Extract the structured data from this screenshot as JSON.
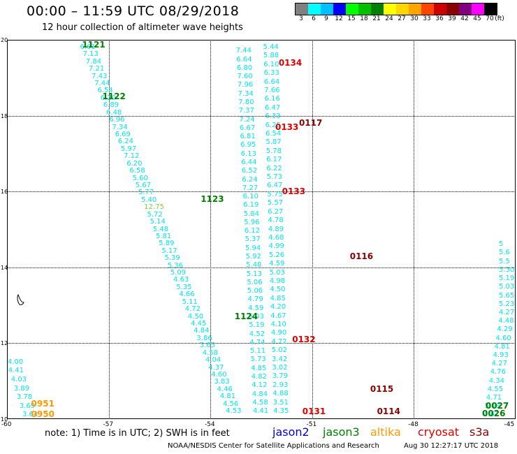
{
  "header": {
    "title": "00:00 – 11:59 UTC 08/29/2018",
    "subtitle": "12 hour collection of altimeter wave heights"
  },
  "colorbar": {
    "unit_label": "(ft)",
    "bins": [
      {
        "label": "3",
        "color": "#808080"
      },
      {
        "label": "6",
        "color": "#00ffff"
      },
      {
        "label": "9",
        "color": "#00bfff"
      },
      {
        "label": "12",
        "color": "#0000ff"
      },
      {
        "label": "15",
        "color": "#00ff00"
      },
      {
        "label": "18",
        "color": "#00c000"
      },
      {
        "label": "21",
        "color": "#008000"
      },
      {
        "label": "24",
        "color": "#ffff00"
      },
      {
        "label": "27",
        "color": "#ffd700"
      },
      {
        "label": "30",
        "color": "#ffa500"
      },
      {
        "label": "33",
        "color": "#ff4500"
      },
      {
        "label": "36",
        "color": "#cc0000"
      },
      {
        "label": "39",
        "color": "#8b0000"
      },
      {
        "label": "42",
        "color": "#800080"
      },
      {
        "label": "45",
        "color": "#ff00ff"
      },
      {
        "label": "70",
        "color": "#000000"
      }
    ]
  },
  "axes": {
    "lon_labels": [
      "-60",
      "-57",
      "-54",
      "-51",
      "-48",
      "-45"
    ],
    "lat_labels": [
      "20",
      "18",
      "16",
      "14",
      "12",
      "10"
    ],
    "lon_range": [
      -60,
      -45
    ],
    "lat_range": [
      10,
      20
    ],
    "grid": "dotted"
  },
  "colors": {
    "cyan": "#00e5ee",
    "green": "#008000",
    "lime": "#7fd13b",
    "red": "#dd0000",
    "maroon": "#8b0000",
    "orange": "#ff9900",
    "blue": "#0000dd"
  },
  "tracks": [
    {
      "color": "#00e5ee",
      "lon_start": -57.6,
      "lon_end": -53.3,
      "lat_start": 19.8,
      "lat_end": 10.2,
      "values": [
        "6.61",
        "7.13",
        "7.84",
        "7.21",
        "7.43",
        "7.44",
        "6.54",
        "6.20",
        "6.89",
        "6.48",
        "6.96",
        "7.34",
        "6.69",
        "6.24",
        "5.97",
        "7.12",
        "6.20",
        "6.58",
        "5.60",
        "5.67",
        "5.77",
        "5.40",
        "12.75",
        "5.72",
        "5.14",
        "5.48",
        "5.81",
        "5.89",
        "5.17",
        "5.39",
        "5.36",
        "5.09",
        "4.63",
        "5.35",
        "4.66",
        "5.11",
        "4.72",
        "4.50",
        "4.45",
        "4.84",
        "3.86",
        "3.65",
        "4.58",
        "4.04",
        "4.37",
        "4.60",
        "3.83",
        "4.46",
        "4.81",
        "4.56",
        "4.53"
      ]
    },
    {
      "color": "#00e5ee",
      "lon_start": -52.2,
      "lon_end": -51.9,
      "lat_start": 19.8,
      "lat_end": 10.2,
      "values": [
        "5.44",
        "5.88",
        "6.10",
        "6.33",
        "6.64",
        "7.66",
        "6.16",
        "6.47",
        "6.33",
        "6.25",
        "6.54",
        "5.87",
        "5.78",
        "6.17",
        "6.22",
        "5.73",
        "6.47",
        "5.75",
        "5.57",
        "6.27",
        "4.78",
        "4.89",
        "4.68",
        "4.99",
        "5.26",
        "4.59",
        "5.03",
        "4.98",
        "4.50",
        "4.85",
        "4.20",
        "4.67",
        "4.10",
        "4.90",
        "4.72",
        "5.02",
        "3.42",
        "3.02",
        "3.79",
        "2.93",
        "4.88",
        "3.51",
        "4.35"
      ]
    },
    {
      "color": "#00e5ee",
      "lon_start": -53.0,
      "lon_end": -52.5,
      "lat_start": 19.7,
      "lat_end": 10.2,
      "values": [
        "7.44",
        "6.64",
        "6.80",
        "7.60",
        "7.96",
        "7.34",
        "7.80",
        "7.37",
        "7.24",
        "6.67",
        "6.81",
        "6.95",
        "6.13",
        "6.44",
        "6.52",
        "6.24",
        "7.27",
        "6.10",
        "6.19",
        "5.84",
        "5.96",
        "6.12",
        "5.37",
        "5.94",
        "5.92",
        "5.48",
        "5.13",
        "5.06",
        "5.06",
        "4.79",
        "4.59",
        "5.03",
        "5.19",
        "4.52",
        "4.74",
        "5.11",
        "5.73",
        "4.85",
        "4.82",
        "4.12",
        "4.84",
        "4.58",
        "4.41"
      ]
    },
    {
      "color": "#00e5ee",
      "lon_start": -59.8,
      "lon_end": -59.3,
      "lat_start": 11.5,
      "lat_end": 10.1,
      "values": [
        "4.00",
        "4.41",
        "4.03",
        "3.89",
        "3.78",
        "3.69",
        "3.64"
      ]
    },
    {
      "color": "#00e5ee",
      "lon_start": -45.7,
      "lon_end": -44.9,
      "lat_start": 10.1,
      "lat_end": 14.6,
      "values": [
        "4.67",
        "5.19",
        "4.71",
        "4.55",
        "4.34",
        "4.76",
        "4.27",
        "4.93",
        "4.81",
        "4.60",
        "4.29",
        "4.48",
        "4.27",
        "5.23",
        "5.65",
        "5.03",
        "5.19",
        "5.30",
        "5.5",
        "5.6",
        "5"
      ]
    }
  ],
  "pass_labels": [
    {
      "text": "1121",
      "color": "#008000",
      "lon": -57.5,
      "lat": 19.9
    },
    {
      "text": "1122",
      "color": "#008000",
      "lon": -56.9,
      "lat": 18.5
    },
    {
      "text": "1123",
      "color": "#008000",
      "lon": -54.0,
      "lat": 15.8
    },
    {
      "text": "1124",
      "color": "#008000",
      "lon": -53.0,
      "lat": 12.7
    },
    {
      "text": "0134",
      "color": "#dd0000",
      "lon": -51.7,
      "lat": 19.4
    },
    {
      "text": "0133",
      "color": "#dd0000",
      "lon": -51.8,
      "lat": 17.7
    },
    {
      "text": "0117",
      "color": "#8b0000",
      "lon": -51.1,
      "lat": 17.8
    },
    {
      "text": "0133",
      "color": "#dd0000",
      "lon": -51.6,
      "lat": 16.0
    },
    {
      "text": "0116",
      "color": "#8b0000",
      "lon": -49.6,
      "lat": 14.3
    },
    {
      "text": "0132",
      "color": "#dd0000",
      "lon": -51.3,
      "lat": 12.1
    },
    {
      "text": "0115",
      "color": "#8b0000",
      "lon": -49.0,
      "lat": 10.8
    },
    {
      "text": "0131",
      "color": "#dd0000",
      "lon": -51.0,
      "lat": 10.2
    },
    {
      "text": "0114",
      "color": "#8b0000",
      "lon": -48.8,
      "lat": 10.2
    },
    {
      "text": "0951",
      "color": "#ff9900",
      "lon": -59.0,
      "lat": 10.4
    },
    {
      "text": "0950",
      "color": "#ff9900",
      "lon": -59.0,
      "lat": 10.1
    },
    {
      "text": "0027",
      "color": "#008000",
      "lon": -45.6,
      "lat": 10.35
    },
    {
      "text": "0026",
      "color": "#008000",
      "lon": -45.7,
      "lat": 10.15
    }
  ],
  "footer": {
    "note": "note: 1) Time is in UTC; 2) SWH is in feet",
    "legend": [
      {
        "label": "jason2",
        "color": "#0000dd"
      },
      {
        "label": "jason3",
        "color": "#008000"
      },
      {
        "label": "altika",
        "color": "#ff9900"
      },
      {
        "label": "cryosat",
        "color": "#dd0000"
      },
      {
        "label": "s3a",
        "color": "#8b0000"
      }
    ],
    "credit": "NOAA/NESDIS Center for Satellite Applications and Research",
    "timestamp": "Aug 30 12:27:17 UTC 2018"
  }
}
